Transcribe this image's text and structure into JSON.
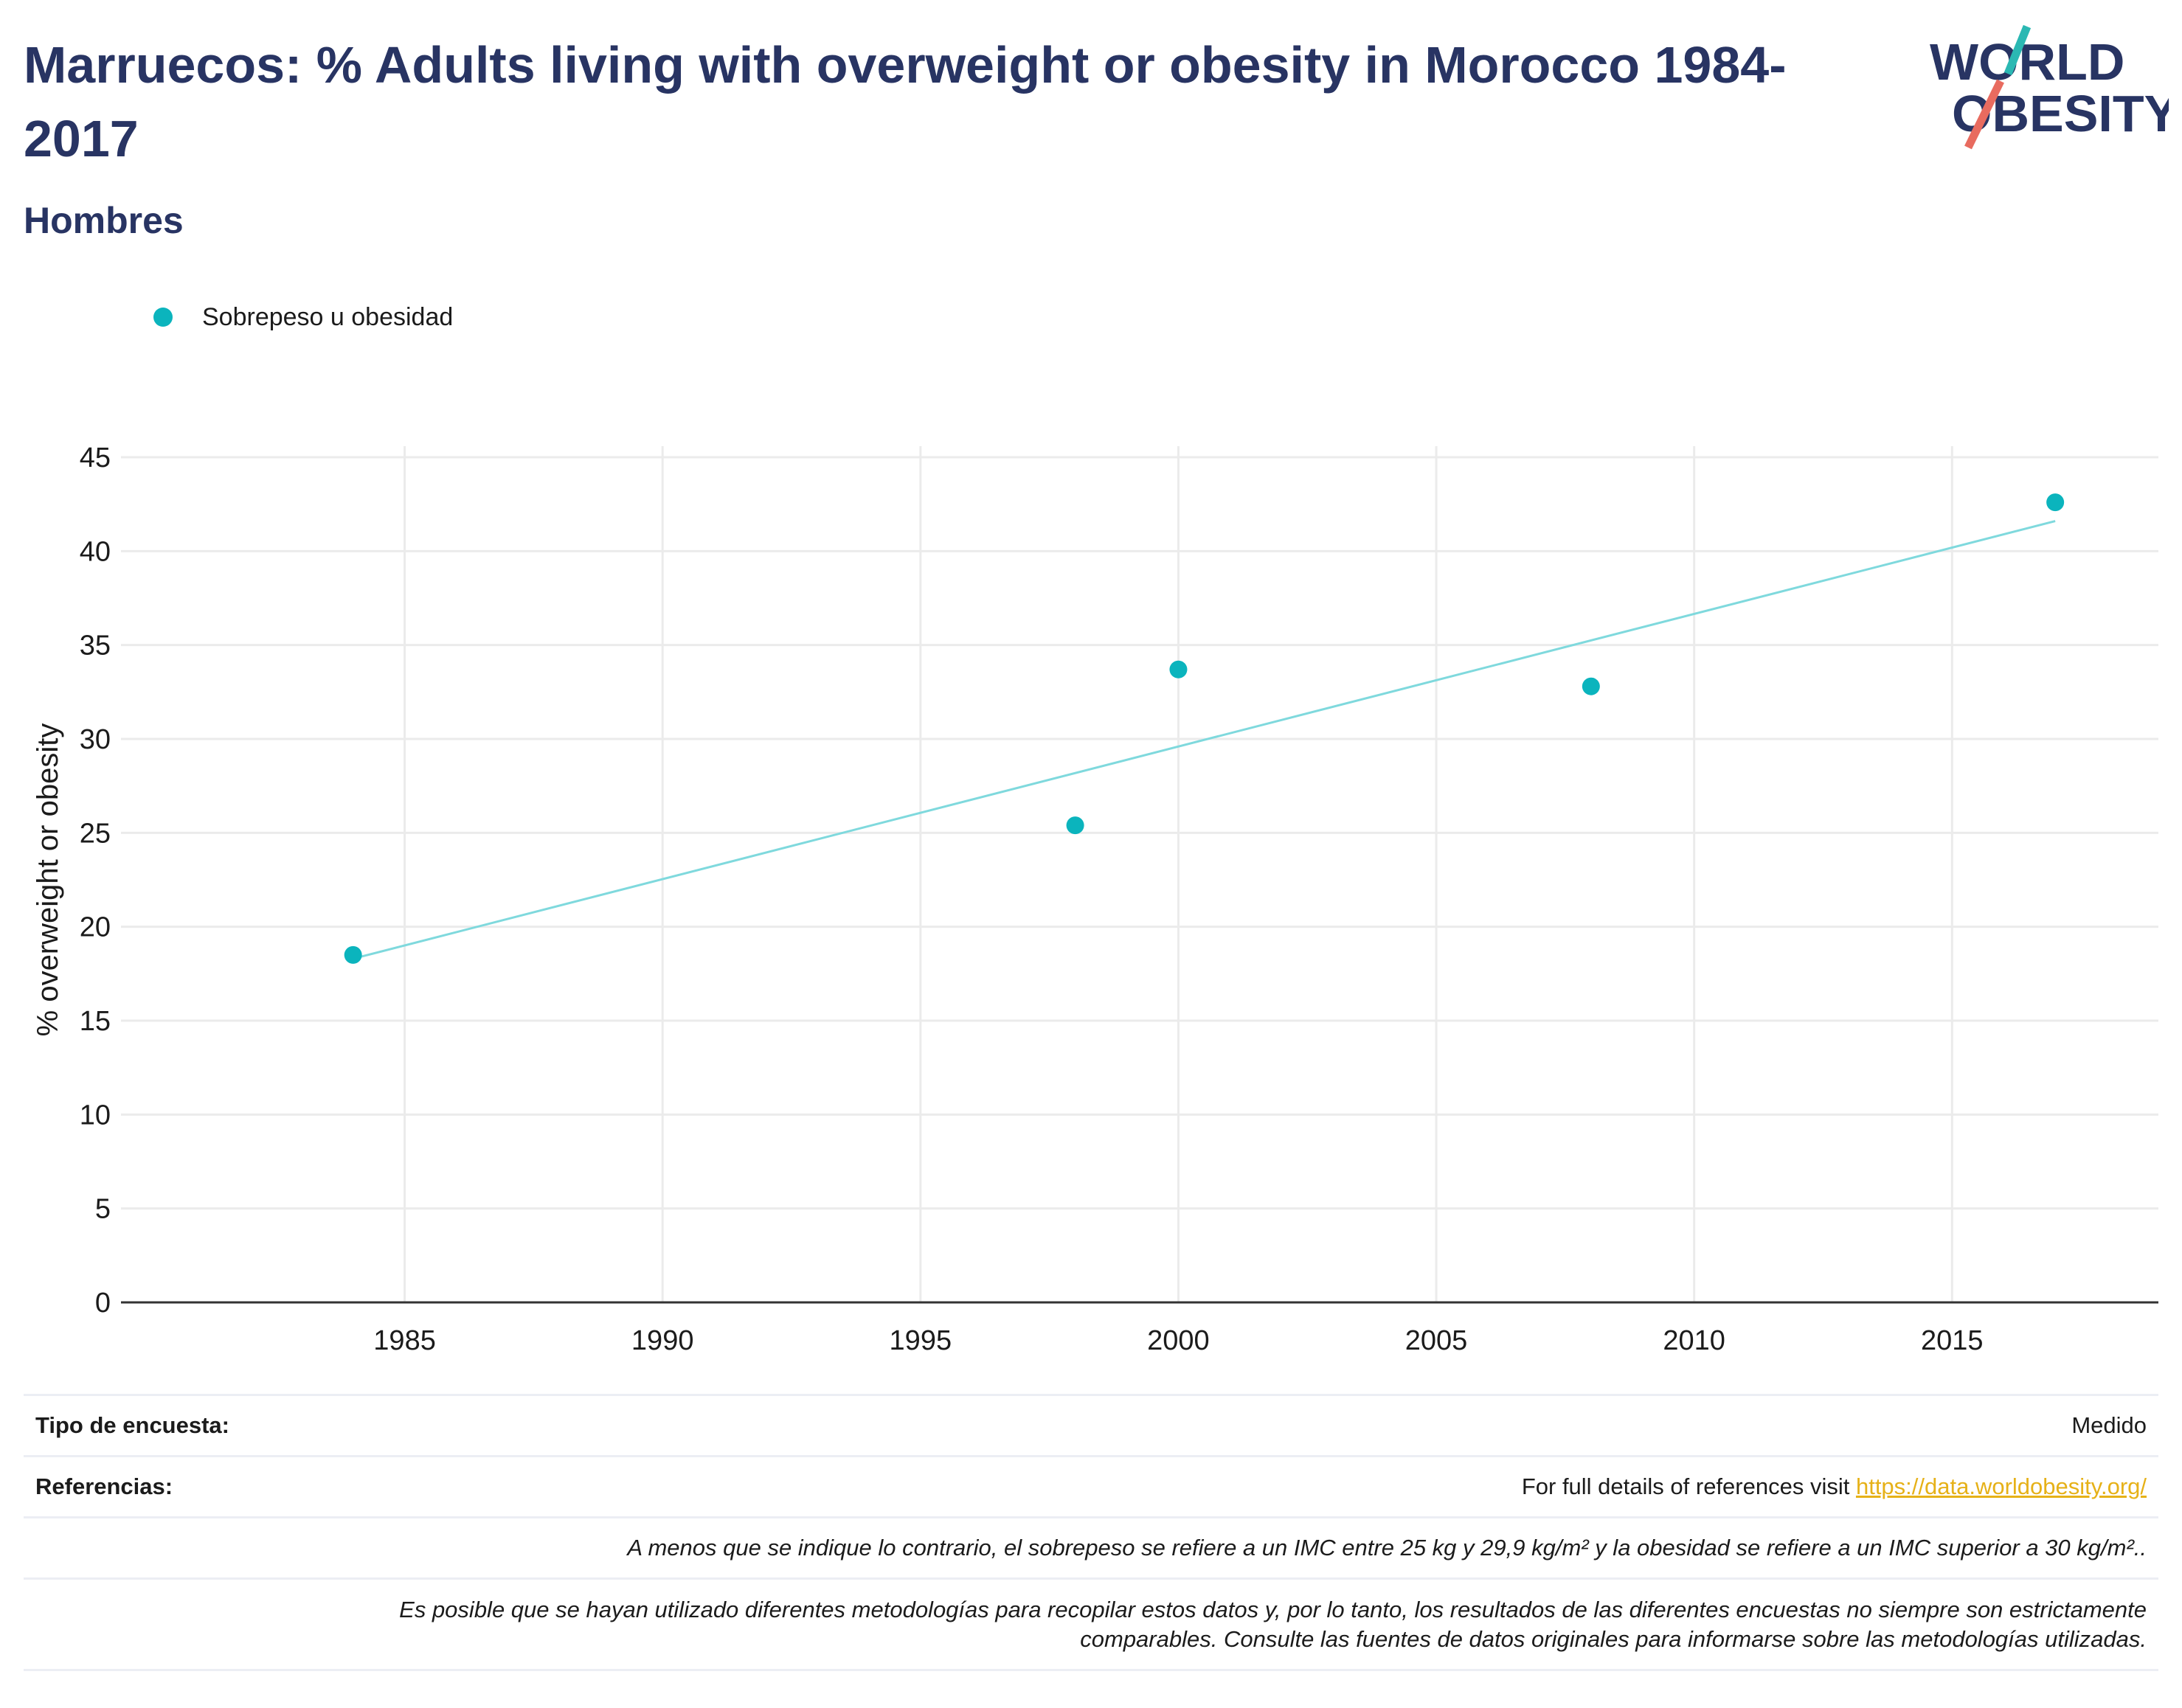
{
  "header": {
    "title": "Marruecos: % Adults living with overweight or obesity in Morocco 1984-2017",
    "subtitle": "Hombres"
  },
  "logo": {
    "line1": "WORLD",
    "line2": "OBESITY",
    "text_color": "#283463",
    "slash_top_color": "#2bb8b3",
    "slash_bottom_color": "#e86b5f"
  },
  "legend": {
    "label": "Sobrepeso u obesidad",
    "color": "#0bb4bd"
  },
  "chart_data": {
    "type": "scatter",
    "title": "",
    "xlabel": "",
    "ylabel": "% overweight or obesity",
    "xlim": [
      1979.5,
      2019.0
    ],
    "ylim": [
      0,
      45
    ],
    "x_ticks": [
      1985,
      1990,
      1995,
      2000,
      2005,
      2010,
      2015
    ],
    "y_ticks": [
      0,
      5,
      10,
      15,
      20,
      25,
      30,
      35,
      40,
      45
    ],
    "grid": true,
    "legend_position": "top-left",
    "series": [
      {
        "name": "Sobrepeso u obesidad",
        "color": "#0bb4bd",
        "x": [
          1984,
          1998,
          2000,
          2008,
          2017
        ],
        "y": [
          18.5,
          25.4,
          33.7,
          32.8,
          42.6
        ]
      }
    ],
    "trendline": {
      "color": "#7fd9dd",
      "x": [
        1984,
        2017
      ],
      "y": [
        18.3,
        41.6
      ]
    }
  },
  "notes": {
    "survey_type_label": "Tipo de encuesta:",
    "survey_type_value": "Medido",
    "references_label": "Referencias:",
    "references_text": "For full details of references visit",
    "references_link": "https://data.worldobesity.org/",
    "bmi_note": "A menos que se indique lo contrario, el sobrepeso se refiere a un IMC entre 25 kg y 29,9 kg/m² y la obesidad se refiere a un IMC superior a 30 kg/m²..",
    "methodology_note_line1": "Es posible que se hayan utilizado diferentes metodologías para recopilar estos datos y, por lo tanto, los resultados de las diferentes encuestas no siempre son estrictamente",
    "methodology_note_line2": "comparables. Consulte las fuentes de datos originales para informarse sobre las metodologías utilizadas."
  }
}
